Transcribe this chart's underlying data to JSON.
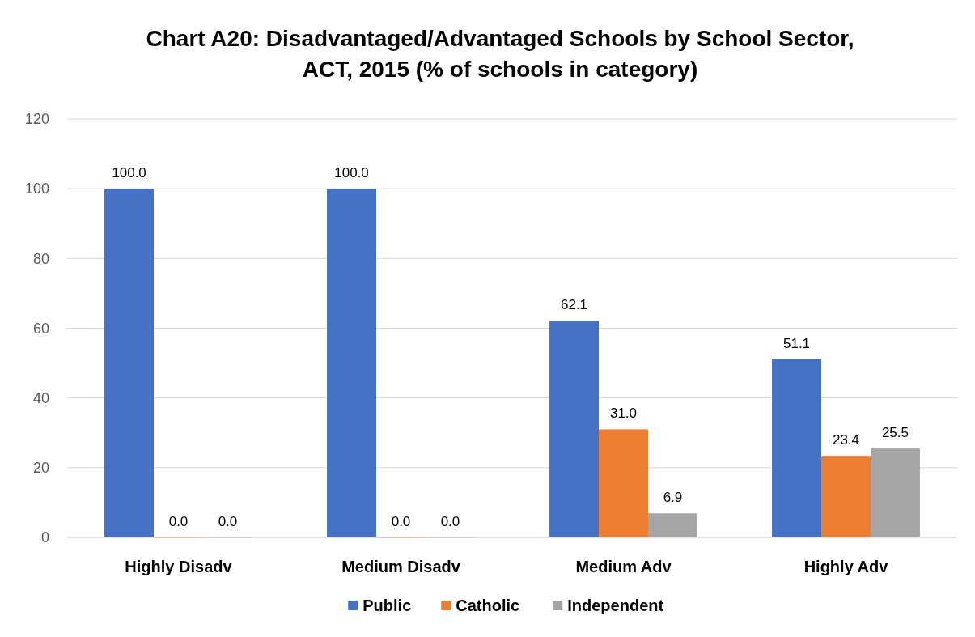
{
  "chart_data": {
    "type": "bar",
    "title": "Chart A20: Disadvantaged/Advantaged Schools by School Sector, ACT, 2015 (% of schools in category)",
    "categories": [
      "Highly Disadv",
      "Medium Disadv",
      "Medium Adv",
      "Highly Adv"
    ],
    "series": [
      {
        "name": "Public",
        "color": "#4472c4",
        "values": [
          100.0,
          100.0,
          62.1,
          51.1
        ],
        "value_labels": [
          "100.0",
          "100.0",
          "62.1",
          "51.1"
        ]
      },
      {
        "name": "Catholic",
        "color": "#ed7d31",
        "values": [
          0.0,
          0.0,
          31.0,
          23.4
        ],
        "value_labels": [
          "0.0",
          "0.0",
          "31.0",
          "23.4"
        ]
      },
      {
        "name": "Independent",
        "color": "#a5a5a5",
        "values": [
          0.0,
          0.0,
          6.9,
          25.5
        ],
        "value_labels": [
          "0.0",
          "0.0",
          "6.9",
          "25.5"
        ]
      }
    ],
    "ylim": [
      0,
      120
    ],
    "yticks": [
      0,
      20,
      40,
      60,
      80,
      100,
      120
    ],
    "grid": "y",
    "legend": "bottom"
  }
}
